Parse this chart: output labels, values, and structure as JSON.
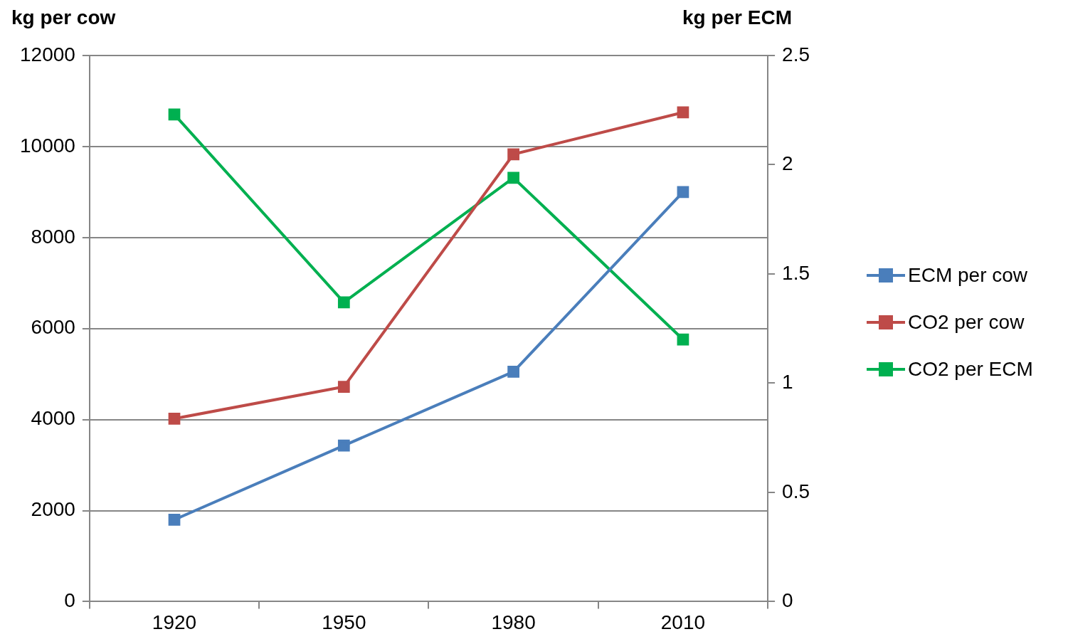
{
  "chart_data": {
    "type": "line",
    "ylabel": "kg per cow",
    "y2label": "kg per ECM",
    "categories": [
      "1920",
      "1950",
      "1980",
      "2010"
    ],
    "series": [
      {
        "name": "ECM per cow",
        "color": "#4a7ebb",
        "values": [
          1800,
          3430,
          5050,
          9000
        ]
      },
      {
        "name": "CO2 per cow",
        "color": "#be4b48",
        "values": [
          4020,
          4720,
          9830,
          10750
        ]
      },
      {
        "name": "CO2 per ECM",
        "color": "#00b050",
        "values": [
          2.23,
          1.37,
          1.94,
          1.2
        ],
        "axis": "y2"
      }
    ],
    "ylim": [
      0,
      12000
    ],
    "yticks": [
      0,
      2000,
      4000,
      6000,
      8000,
      10000,
      12000
    ],
    "y2lim": [
      0,
      2.5
    ],
    "y2ticks": [
      0,
      0.5,
      1,
      1.5,
      2,
      2.5
    ],
    "grid": "y",
    "legend": "right",
    "marker": "square",
    "line_style": "solid"
  }
}
